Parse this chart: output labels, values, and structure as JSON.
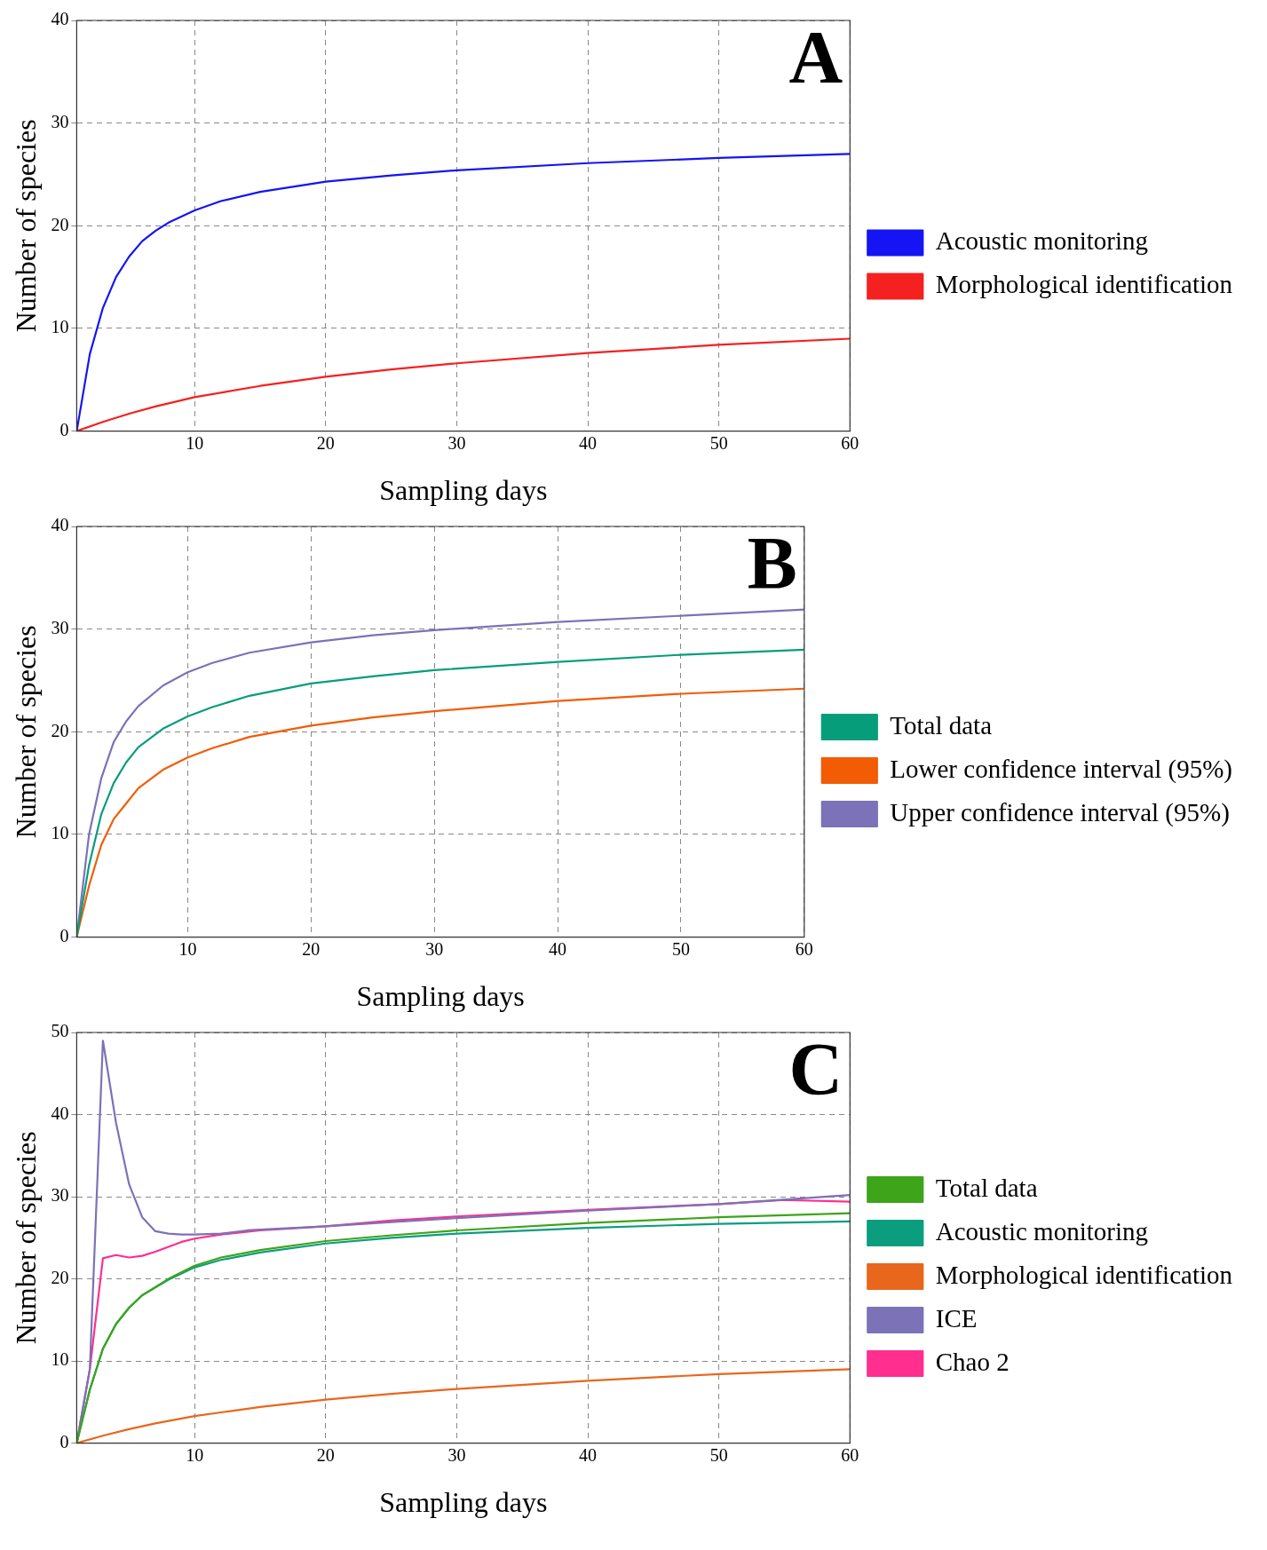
{
  "chart_data": [
    {
      "type": "line",
      "title": "A",
      "xlabel": "Sampling days",
      "ylabel": "Number of species",
      "xlim": [
        1,
        60
      ],
      "xticks": [
        10,
        20,
        30,
        40,
        50,
        60
      ],
      "ylim": [
        0,
        40
      ],
      "yticks": [
        0,
        10,
        20,
        30,
        40
      ],
      "grid": true,
      "legend": "right",
      "series": [
        {
          "name": "Acoustic monitoring",
          "color": "#1414f5",
          "x": [
            1,
            2,
            3,
            4,
            5,
            6,
            7,
            8,
            10,
            12,
            15,
            20,
            25,
            30,
            40,
            50,
            60
          ],
          "values": [
            0,
            7.5,
            12,
            15,
            17,
            18.5,
            19.5,
            20.3,
            21.5,
            22.4,
            23.3,
            24.3,
            24.9,
            25.4,
            26.1,
            26.6,
            27
          ]
        },
        {
          "name": "Morphological identification",
          "color": "#f52020",
          "x": [
            1,
            3,
            5,
            7,
            10,
            15,
            20,
            25,
            30,
            40,
            50,
            60
          ],
          "values": [
            0,
            0.9,
            1.7,
            2.4,
            3.3,
            4.4,
            5.3,
            6,
            6.6,
            7.6,
            8.4,
            9
          ]
        }
      ]
    },
    {
      "type": "line",
      "title": "B",
      "xlabel": "Sampling days",
      "ylabel": "Number of species",
      "xlim": [
        1,
        60
      ],
      "xticks": [
        10,
        20,
        30,
        40,
        50,
        60
      ],
      "ylim": [
        0,
        40
      ],
      "yticks": [
        0,
        10,
        20,
        30,
        40
      ],
      "grid": true,
      "legend": "right",
      "series": [
        {
          "name": "Total data",
          "color": "#069e7a",
          "x": [
            1,
            2,
            3,
            4,
            5,
            6,
            8,
            10,
            12,
            15,
            20,
            25,
            30,
            40,
            50,
            60
          ],
          "values": [
            0,
            7,
            12,
            15,
            17,
            18.5,
            20.3,
            21.5,
            22.4,
            23.5,
            24.7,
            25.4,
            26,
            26.8,
            27.5,
            28
          ]
        },
        {
          "name": "Lower confidence interval (95%)",
          "color": "#f25c05",
          "x": [
            1,
            2,
            3,
            4,
            5,
            6,
            8,
            10,
            12,
            15,
            20,
            25,
            30,
            40,
            50,
            60
          ],
          "values": [
            0,
            5,
            9,
            11.5,
            13,
            14.5,
            16.3,
            17.5,
            18.4,
            19.5,
            20.6,
            21.4,
            22,
            23,
            23.7,
            24.2
          ]
        },
        {
          "name": "Upper confidence interval (95%)",
          "color": "#7b72b8",
          "x": [
            1,
            2,
            3,
            4,
            5,
            6,
            8,
            10,
            12,
            15,
            20,
            25,
            30,
            40,
            50,
            60
          ],
          "values": [
            0,
            10,
            15.5,
            19,
            21,
            22.5,
            24.5,
            25.8,
            26.7,
            27.7,
            28.7,
            29.4,
            29.9,
            30.7,
            31.3,
            31.9
          ]
        }
      ]
    },
    {
      "type": "line",
      "title": "C",
      "xlabel": "Sampling days",
      "ylabel": "Number of species",
      "xlim": [
        1,
        60
      ],
      "xticks": [
        10,
        20,
        30,
        40,
        50,
        60
      ],
      "ylim": [
        0,
        50
      ],
      "yticks": [
        0,
        10,
        20,
        30,
        40,
        50
      ],
      "grid": true,
      "legend": "right",
      "series": [
        {
          "name": "Total data",
          "color": "#3ea41a",
          "x": [
            1,
            2,
            3,
            4,
            5,
            6,
            8,
            10,
            12,
            15,
            20,
            25,
            30,
            40,
            50,
            60
          ],
          "values": [
            0,
            6.5,
            11.5,
            14.5,
            16.5,
            18,
            20,
            21.6,
            22.6,
            23.5,
            24.6,
            25.3,
            25.9,
            26.8,
            27.5,
            28
          ]
        },
        {
          "name": "Acoustic monitoring",
          "color": "#0a9e7e",
          "x": [
            1,
            2,
            3,
            4,
            5,
            6,
            8,
            10,
            12,
            15,
            20,
            25,
            30,
            40,
            50,
            60
          ],
          "values": [
            0,
            6.5,
            11.5,
            14.5,
            16.5,
            18,
            19.9,
            21.4,
            22.3,
            23.2,
            24.3,
            25,
            25.5,
            26.2,
            26.7,
            27
          ]
        },
        {
          "name": "Morphological identification",
          "color": "#e8671c",
          "x": [
            1,
            3,
            5,
            7,
            10,
            15,
            20,
            25,
            30,
            40,
            50,
            60
          ],
          "values": [
            0,
            0.9,
            1.7,
            2.4,
            3.3,
            4.4,
            5.3,
            6,
            6.6,
            7.6,
            8.4,
            9
          ]
        },
        {
          "name": "ICE",
          "color": "#7b72b8",
          "x": [
            1,
            2,
            3,
            4,
            5,
            6,
            7,
            8,
            9,
            10,
            12,
            14,
            20,
            25,
            30,
            40,
            50,
            60
          ],
          "values": [
            0,
            9,
            49,
            39,
            31.5,
            27.5,
            25.8,
            25.5,
            25.4,
            25.4,
            25.5,
            25.9,
            26.4,
            26.9,
            27.4,
            28.3,
            29.1,
            30.2
          ]
        },
        {
          "name": "Chao 2",
          "color": "#ff2e8f",
          "x": [
            1,
            2,
            3,
            4,
            5,
            6,
            7,
            8,
            9,
            10,
            12,
            15,
            20,
            25,
            30,
            40,
            50,
            55,
            60
          ],
          "values": [
            0,
            9,
            22.5,
            22.9,
            22.6,
            22.8,
            23.3,
            23.9,
            24.5,
            24.9,
            25.4,
            25.9,
            26.4,
            27.1,
            27.6,
            28.4,
            29.1,
            29.6,
            29.4
          ]
        }
      ]
    }
  ]
}
